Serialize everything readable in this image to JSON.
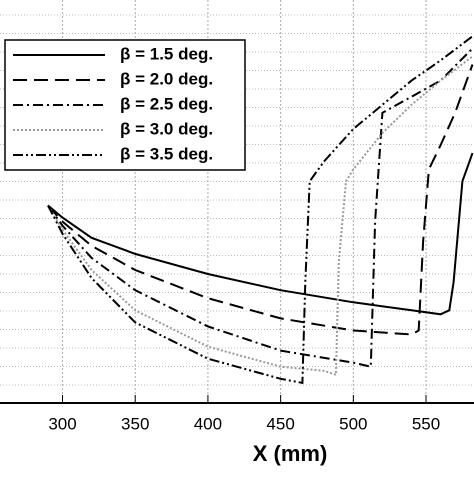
{
  "chart_data": {
    "type": "line",
    "x_label": "X (mm)",
    "xlim": [
      257,
      583
    ],
    "ylim": [
      0,
      100
    ],
    "xticks": [
      300,
      350,
      400,
      450,
      500,
      550
    ],
    "grid": true,
    "legend": "upper-left",
    "series": [
      {
        "name": "β = 1.5 deg.",
        "color": "#000",
        "dash": "none",
        "x": [
          290,
          300,
          320,
          350,
          400,
          450,
          500,
          540,
          560,
          566,
          569,
          575,
          582
        ],
        "values": [
          49,
          46,
          41,
          37,
          32,
          28,
          25,
          23,
          22,
          23,
          30,
          55,
          62
        ]
      },
      {
        "name": "β = 2.0 deg.",
        "color": "#000",
        "dash": "14 7",
        "x": [
          290,
          300,
          320,
          350,
          400,
          450,
          500,
          540,
          545,
          548,
          552,
          560,
          570,
          582
        ],
        "values": [
          49,
          45,
          39,
          33,
          26,
          21,
          18,
          17,
          18,
          40,
          58,
          64,
          72,
          84
        ]
      },
      {
        "name": "β = 2.5 deg.",
        "color": "#000",
        "dash": "10 4 2 4",
        "x": [
          290,
          300,
          320,
          350,
          400,
          450,
          500,
          512,
          515,
          520,
          540,
          560,
          582
        ],
        "values": [
          49,
          44,
          36,
          28,
          19,
          13,
          10,
          9,
          45,
          72,
          76,
          80,
          88
        ]
      },
      {
        "name": "β = 3.0 deg.",
        "color": "#999",
        "dash": "2 2",
        "x": [
          290,
          300,
          320,
          350,
          400,
          450,
          480,
          488,
          490,
          495,
          500,
          520,
          540,
          560,
          582
        ],
        "values": [
          49,
          43,
          33,
          23,
          14,
          9,
          8,
          7,
          35,
          55,
          58,
          67,
          74,
          80,
          86
        ]
      },
      {
        "name": "β = 3.5 deg.",
        "color": "#000",
        "dash": "10 3 2 3 2 3",
        "x": [
          290,
          300,
          320,
          350,
          400,
          450,
          465,
          467,
          470,
          480,
          500,
          520,
          540,
          560,
          582
        ],
        "values": [
          49,
          42,
          31,
          20,
          11,
          6,
          5,
          30,
          55,
          60,
          68,
          74,
          80,
          85,
          91
        ]
      }
    ]
  }
}
